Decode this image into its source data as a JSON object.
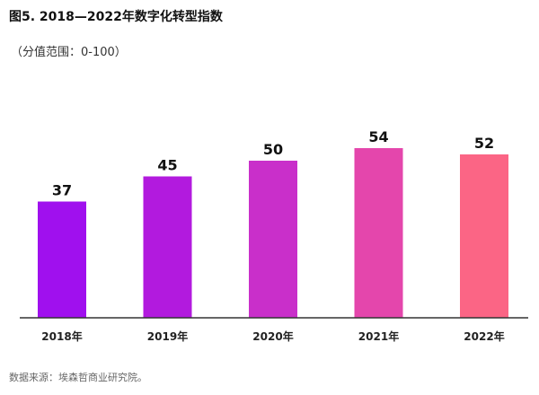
{
  "title": "图5. 2018—2022年数字化转型指数",
  "subtitle": "（分值范围：0-100）",
  "source": "数据来源：埃森哲商业研究院。",
  "chart_data": {
    "type": "bar",
    "title": "图5. 2018—2022年数字化转型指数",
    "subtitle": "（分值范围：0-100）",
    "categories": [
      "2018年",
      "2019年",
      "2020年",
      "2021年",
      "2022年"
    ],
    "values": [
      37,
      45,
      50,
      54,
      52
    ],
    "data_labels": [
      "37",
      "45",
      "50",
      "54",
      "52"
    ],
    "ylim": [
      0,
      100
    ],
    "grid": false,
    "legend": "none",
    "colors": [
      "#a010ee",
      "#b21ade",
      "#c92fca",
      "#e446ac",
      "#fb6585"
    ]
  }
}
